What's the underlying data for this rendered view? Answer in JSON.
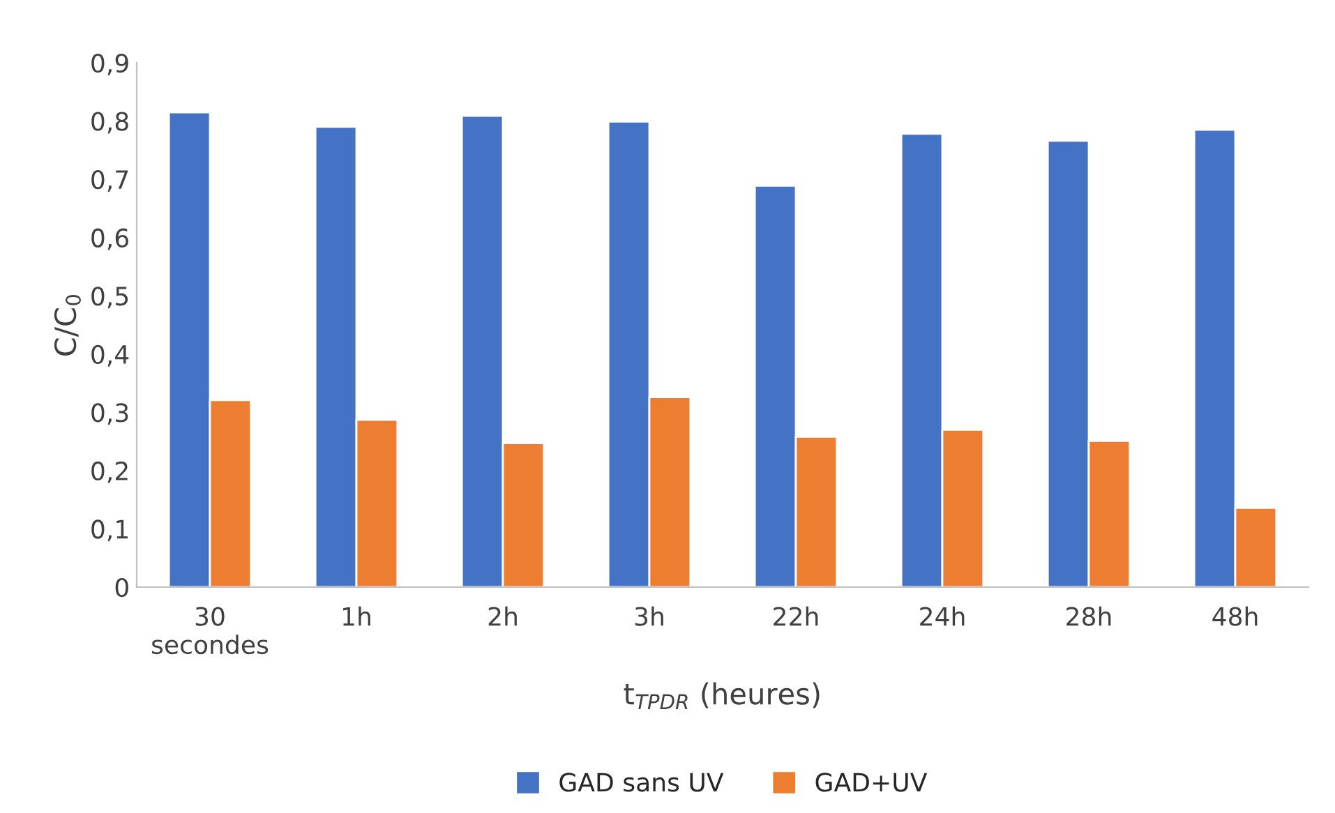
{
  "chart_data": {
    "type": "bar",
    "xlabel": "t$_{TPDR}$ (heures)",
    "ylabel": "C/C$_{0}$",
    "categories": [
      "30\nsecondes",
      "1h",
      "2h",
      "3h",
      "22h",
      "24h",
      "28h",
      "48h"
    ],
    "series": [
      {
        "name": "GAD sans UV",
        "color": "#4472c4",
        "values": [
          0.815,
          0.79,
          0.809,
          0.799,
          0.689,
          0.778,
          0.766,
          0.785
        ]
      },
      {
        "name": "GAD+UV",
        "color": "#ed7d31",
        "values": [
          0.321,
          0.287,
          0.247,
          0.326,
          0.258,
          0.27,
          0.251,
          0.136
        ]
      }
    ],
    "ylim": [
      0,
      0.9
    ],
    "yticks": [
      {
        "value": 0,
        "label": "0"
      },
      {
        "value": 0.1,
        "label": "0,1"
      },
      {
        "value": 0.2,
        "label": "0,2"
      },
      {
        "value": 0.3,
        "label": "0,3"
      },
      {
        "value": 0.4,
        "label": "0,4"
      },
      {
        "value": 0.5,
        "label": "0,5"
      },
      {
        "value": 0.6,
        "label": "0,6"
      },
      {
        "value": 0.7,
        "label": "0,7"
      },
      {
        "value": 0.8,
        "label": "0,8"
      },
      {
        "value": 0.9,
        "label": "0,9"
      }
    ],
    "grid": false,
    "legend": "bottom"
  }
}
